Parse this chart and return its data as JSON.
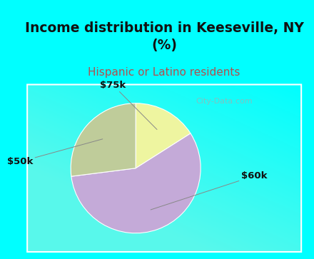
{
  "title": "Income distribution in Keeseville, NY\n(%)",
  "subtitle": "Hispanic or Latino residents",
  "slices": [
    {
      "label": "$75k",
      "value": 16,
      "color": "#eef5a0"
    },
    {
      "label": "$60k",
      "value": 57,
      "color": "#c4aad8"
    },
    {
      "label": "$50k",
      "value": 27,
      "color": "#bfcc9a"
    }
  ],
  "title_fontsize": 13.5,
  "subtitle_fontsize": 11,
  "subtitle_color": "#b05050",
  "title_color": "#111111",
  "bg_color": "#00ffff",
  "label_fontsize": 9.5,
  "startangle": 90,
  "watermark": "© City-Data.com"
}
